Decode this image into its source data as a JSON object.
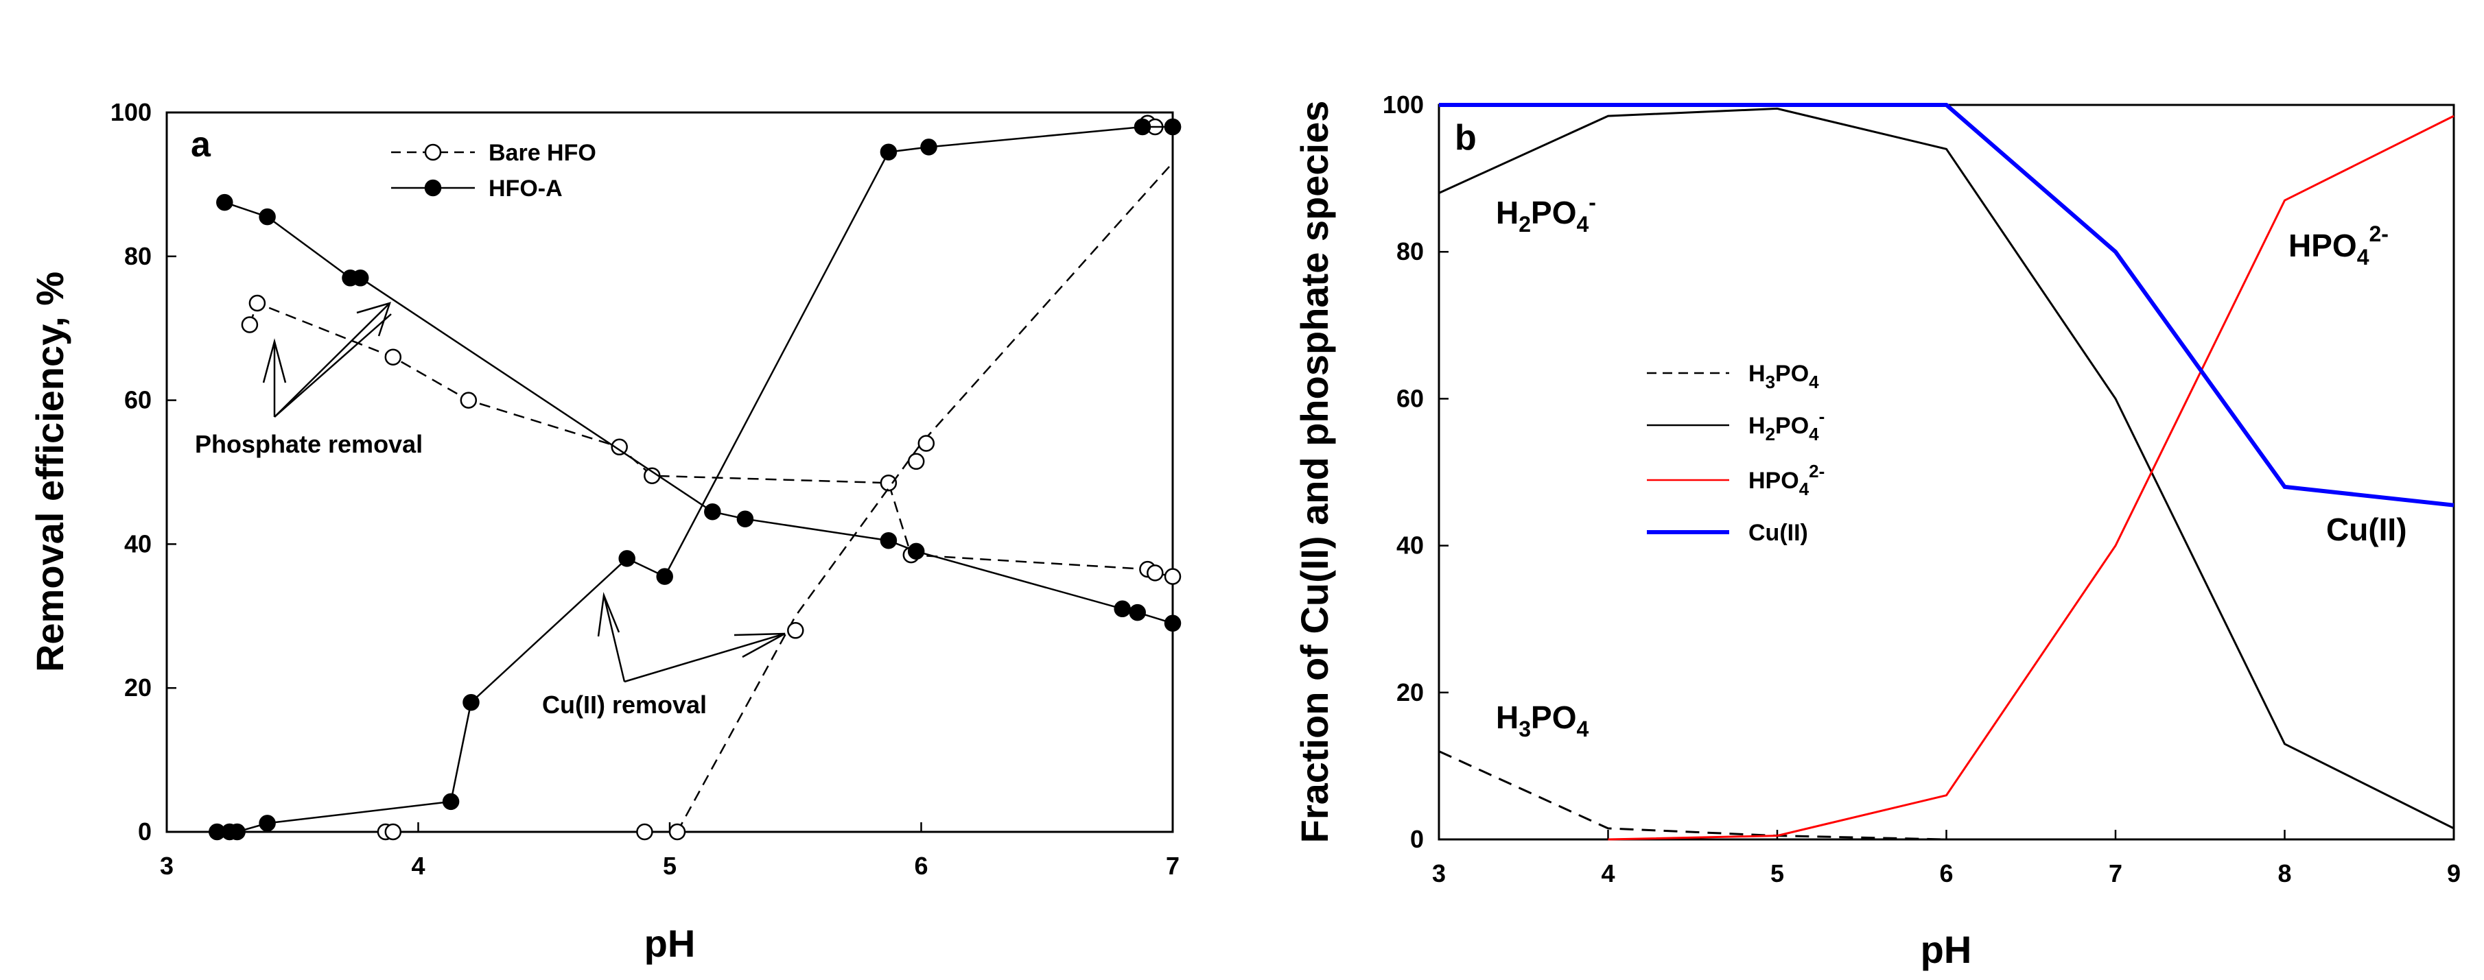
{
  "chart_data": [
    {
      "type": "line",
      "panel_label": "a",
      "xlabel": "pH",
      "ylabel": "Removal efficiency, %",
      "xlim": [
        3,
        7
      ],
      "ylim": [
        0,
        100
      ],
      "xticks": [
        3,
        4,
        5,
        6,
        7
      ],
      "yticks": [
        0,
        20,
        40,
        60,
        80,
        100
      ],
      "grid": false,
      "legend_position": "top",
      "series": [
        {
          "name": "Bare HFO",
          "role": "phosphate",
          "style": "dashed",
          "marker": "open-circle",
          "color": "#000000",
          "points": [
            [
              3.33,
              70.5
            ],
            [
              3.36,
              73.5
            ],
            [
              3.9,
              66
            ],
            [
              4.2,
              60
            ],
            [
              4.8,
              53.5
            ],
            [
              4.93,
              49.5
            ],
            [
              5.87,
              48.5
            ],
            [
              5.96,
              38.5
            ],
            [
              6.9,
              36.5
            ],
            [
              6.93,
              36
            ],
            [
              7.0,
              35.5
            ]
          ]
        },
        {
          "name": "HFO-A",
          "role": "phosphate",
          "style": "solid",
          "marker": "filled-circle",
          "color": "#000000",
          "points": [
            [
              3.23,
              87.5
            ],
            [
              3.4,
              85.5
            ],
            [
              3.73,
              77
            ],
            [
              3.77,
              77
            ],
            [
              5.17,
              44.5
            ],
            [
              5.3,
              43.5
            ],
            [
              5.87,
              40.5
            ],
            [
              5.98,
              39
            ],
            [
              6.8,
              31
            ],
            [
              6.86,
              30.5
            ],
            [
              7.0,
              29
            ]
          ]
        },
        {
          "name": "Bare HFO",
          "role": "Cu(II)",
          "style": "dashed",
          "marker": "open-circle",
          "color": "#000000",
          "points": [
            [
              3.87,
              0
            ],
            [
              3.9,
              0
            ],
            [
              4.9,
              0
            ],
            [
              5.03,
              0
            ],
            [
              5.5,
              28
            ],
            [
              5.98,
              51.5
            ],
            [
              6.02,
              54
            ],
            [
              6.9,
              98.5
            ],
            [
              6.93,
              98
            ],
            [
              7.0,
              98
            ]
          ],
          "extra_line": [
            [
              5.03,
              0
            ],
            [
              5.5,
              30
            ],
            [
              6.0,
              54
            ],
            [
              7.0,
              93
            ]
          ]
        },
        {
          "name": "HFO-A",
          "role": "Cu(II)",
          "style": "solid",
          "marker": "filled-circle",
          "color": "#000000",
          "points": [
            [
              3.2,
              0
            ],
            [
              3.25,
              0
            ],
            [
              3.28,
              0
            ],
            [
              3.4,
              1.2
            ],
            [
              4.13,
              4.2
            ],
            [
              4.21,
              18
            ],
            [
              4.83,
              38
            ],
            [
              4.98,
              35.5
            ],
            [
              5.87,
              94.5
            ],
            [
              6.03,
              95.2
            ],
            [
              6.88,
              98
            ],
            [
              7.0,
              98
            ]
          ]
        }
      ],
      "legend": [
        {
          "label": "Bare HFO",
          "style": "dashed",
          "marker": "open-circle"
        },
        {
          "label": "HFO-A",
          "style": "solid",
          "marker": "filled-circle"
        }
      ],
      "annotations": [
        {
          "text": "Phosphate removal"
        },
        {
          "text": "Cu(II) removal"
        }
      ]
    },
    {
      "type": "line",
      "panel_label": "b",
      "xlabel": "pH",
      "ylabel": "Fraction of Cu(II) and phosphate species",
      "xlim": [
        3,
        9
      ],
      "ylim": [
        0,
        100
      ],
      "xticks": [
        3,
        4,
        5,
        6,
        7,
        8,
        9
      ],
      "yticks": [
        0,
        20,
        40,
        60,
        80,
        100
      ],
      "grid": false,
      "legend_position": "center-left",
      "series": [
        {
          "name": "H3PO4",
          "style": "dashed",
          "color": "#000000",
          "x": [
            3,
            4,
            5,
            6
          ],
          "y": [
            12,
            1.5,
            0.5,
            0
          ]
        },
        {
          "name": "H2PO4-",
          "style": "solid",
          "color": "#000000",
          "x": [
            3,
            4,
            5,
            6,
            7,
            8,
            9
          ],
          "y": [
            88,
            98.5,
            99.5,
            94,
            60,
            13,
            1.5
          ]
        },
        {
          "name": "HPO42-",
          "style": "solid",
          "color": "#ff0000",
          "x": [
            4,
            5,
            6,
            7,
            8,
            9
          ],
          "y": [
            0,
            0.5,
            6,
            40,
            87,
            98.5
          ]
        },
        {
          "name": "Cu(II)",
          "style": "solid-thick",
          "color": "#0000ff",
          "x": [
            3,
            4,
            5,
            6,
            7,
            8,
            9
          ],
          "y": [
            100,
            100,
            100,
            100,
            80,
            48,
            45.5
          ]
        }
      ],
      "legend": [
        {
          "label_base": "H",
          "sub1": "3",
          "mid": "PO",
          "sub2": "4",
          "sup": "",
          "style": "dashed",
          "color": "#000000"
        },
        {
          "label_base": "H",
          "sub1": "2",
          "mid": "PO",
          "sub2": "4",
          "sup": "-",
          "style": "solid",
          "color": "#000000"
        },
        {
          "label_base": "HPO",
          "sub1": "4",
          "mid": "",
          "sub2": "",
          "sup": "2-",
          "style": "solid",
          "color": "#ff0000"
        },
        {
          "label_base": "Cu(II)",
          "sub1": "",
          "mid": "",
          "sub2": "",
          "sup": "",
          "style": "solid-thick",
          "color": "#0000ff"
        }
      ],
      "annotations": [
        {
          "text": "H2PO4-"
        },
        {
          "text": "HPO42-"
        },
        {
          "text": "H3PO4"
        },
        {
          "text": "Cu(II)"
        }
      ]
    }
  ],
  "texts": {
    "a_annot_phosphate": "Phosphate removal",
    "a_annot_cu": "Cu(II) removal",
    "b_species_h2po4_base": "H",
    "b_species_h2po4_sub1": "2",
    "b_species_h2po4_mid": "PO",
    "b_species_h2po4_sub2": "4",
    "b_species_h2po4_sup": "-",
    "b_species_hpo4_base": "HPO",
    "b_species_hpo4_sub": "4",
    "b_species_hpo4_sup": "2-",
    "b_species_h3po4_base": "H",
    "b_species_h3po4_sub1": "3",
    "b_species_h3po4_mid": "PO",
    "b_species_h3po4_sub2": "4",
    "b_species_cu": "Cu(II)"
  }
}
